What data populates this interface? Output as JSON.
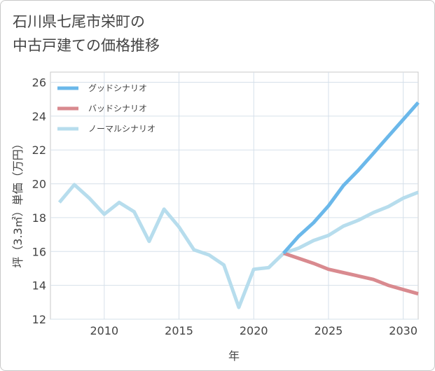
{
  "title_lines": [
    "石川県七尾市栄町の",
    "中古戸建ての価格推移"
  ],
  "chart_data": {
    "type": "line",
    "xlabel": "年",
    "ylabel": "坪（3.3㎡）単価（万円）",
    "xlim": [
      2006.4,
      2031
    ],
    "ylim": [
      12,
      26.6
    ],
    "x_ticks": [
      2010,
      2015,
      2020,
      2025,
      2030
    ],
    "y_ticks": [
      12,
      14,
      16,
      18,
      20,
      22,
      24,
      26
    ],
    "grid": true,
    "legend_position": "top-left",
    "series": [
      {
        "name": "グッドシナリオ",
        "color": "#6bb8ea",
        "x": [
          2022,
          2023,
          2024,
          2025,
          2026,
          2027,
          2028,
          2029,
          2030,
          2031
        ],
        "y": [
          15.9,
          16.9,
          17.7,
          18.7,
          19.9,
          20.8,
          21.8,
          22.8,
          23.8,
          24.8
        ]
      },
      {
        "name": "バッドシナリオ",
        "color": "#d98a8f",
        "x": [
          2022,
          2023,
          2024,
          2025,
          2026,
          2027,
          2028,
          2029,
          2030,
          2031
        ],
        "y": [
          15.9,
          15.6,
          15.3,
          14.95,
          14.75,
          14.55,
          14.35,
          14.0,
          13.75,
          13.5
        ]
      },
      {
        "name": "ノーマルシナリオ",
        "color": "#b7dded",
        "x": [
          2007,
          2008,
          2009,
          2010,
          2011,
          2012,
          2013,
          2014,
          2015,
          2016,
          2017,
          2018,
          2019,
          2020,
          2021,
          2022,
          2023,
          2024,
          2025,
          2026,
          2027,
          2028,
          2029,
          2030,
          2031
        ],
        "y": [
          18.9,
          19.95,
          19.15,
          18.2,
          18.9,
          18.35,
          16.6,
          18.5,
          17.45,
          16.1,
          15.8,
          15.2,
          12.7,
          14.95,
          15.05,
          15.9,
          16.2,
          16.65,
          16.95,
          17.5,
          17.85,
          18.3,
          18.65,
          19.15,
          19.5
        ]
      }
    ]
  }
}
